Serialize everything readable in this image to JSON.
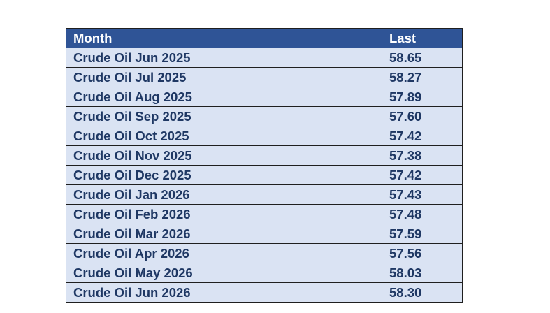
{
  "table": {
    "headers": {
      "month": "Month",
      "last": "Last"
    },
    "rows": [
      {
        "month": "Crude Oil Jun 2025",
        "last": "58.65"
      },
      {
        "month": "Crude Oil Jul 2025",
        "last": "58.27"
      },
      {
        "month": "Crude Oil Aug 2025",
        "last": "57.89"
      },
      {
        "month": "Crude Oil Sep 2025",
        "last": "57.60"
      },
      {
        "month": "Crude Oil Oct 2025",
        "last": "57.42"
      },
      {
        "month": "Crude Oil Nov 2025",
        "last": "57.38"
      },
      {
        "month": "Crude Oil Dec 2025",
        "last": "57.42"
      },
      {
        "month": "Crude Oil Jan 2026",
        "last": "57.43"
      },
      {
        "month": "Crude Oil Feb 2026",
        "last": "57.48"
      },
      {
        "month": "Crude Oil Mar 2026",
        "last": "57.59"
      },
      {
        "month": "Crude Oil Apr 2026",
        "last": "57.56"
      },
      {
        "month": "Crude Oil May 2026",
        "last": "58.03"
      },
      {
        "month": "Crude Oil Jun 2026",
        "last": "58.30"
      }
    ]
  },
  "colors": {
    "header_bg": "#2f5496",
    "header_text": "#ffffff",
    "row_bg": "#dae3f3",
    "row_text": "#1f3864",
    "border": "#1f1f1f"
  }
}
